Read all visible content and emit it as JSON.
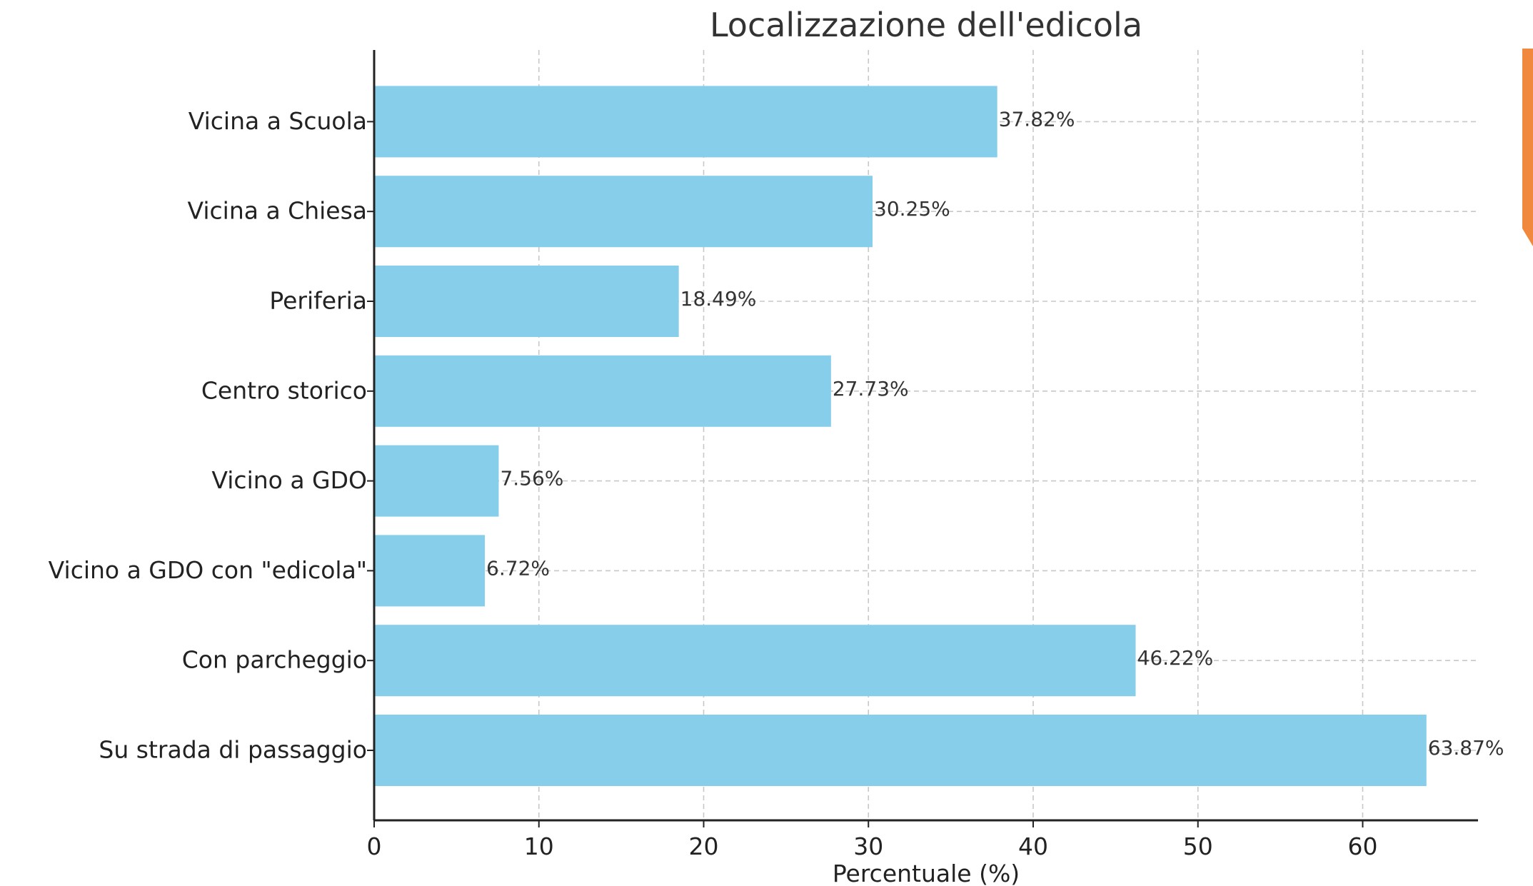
{
  "chart_data": {
    "type": "bar",
    "orientation": "horizontal",
    "title": "Localizzazione dell'edicola",
    "xlabel": "Percentuale (%)",
    "ylabel": "",
    "xlim": [
      0,
      67
    ],
    "xticks": [
      0,
      10,
      20,
      30,
      40,
      50,
      60
    ],
    "grid": true,
    "categories": [
      "Su strada di passaggio",
      "Con parcheggio",
      "Vicino a GDO con \"edicola\"",
      "Vicino a GDO",
      "Centro storico",
      "Periferia",
      "Vicina a Chiesa",
      "Vicina a Scuola"
    ],
    "values": [
      63.87,
      46.22,
      6.72,
      7.56,
      27.73,
      18.49,
      30.25,
      37.82
    ],
    "value_labels": [
      "63.87%",
      "46.22%",
      "6.72%",
      "7.56%",
      "27.73%",
      "18.49%",
      "30.25%",
      "37.82%"
    ],
    "bar_color": "#87ceeb"
  },
  "decoration": {
    "edge_accent_color": "#f0883e"
  }
}
